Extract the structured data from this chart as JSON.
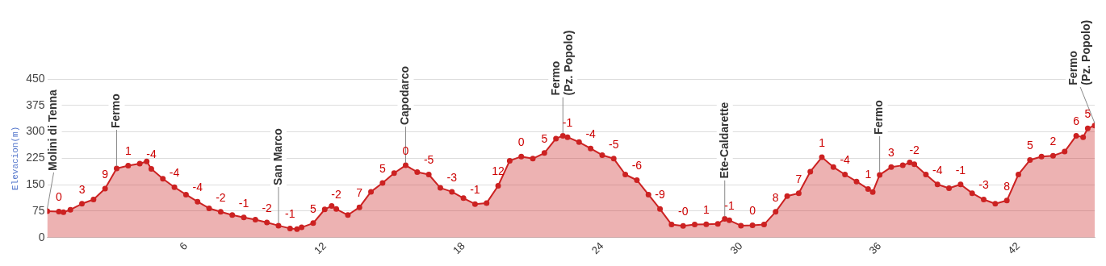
{
  "chart_data": {
    "type": "area",
    "ylabel": "Elevacion(m)",
    "xlim": [
      0,
      45.3
    ],
    "xticks": [
      6,
      12,
      18,
      24,
      30,
      36,
      42
    ],
    "ylim": [
      0,
      450
    ],
    "yticks": [
      0,
      75,
      150,
      225,
      300,
      375,
      450
    ],
    "grid": "y",
    "legend": false,
    "marker": "circle",
    "series": [
      {
        "color": "#cc2222",
        "x": [
          0,
          0.5,
          0.7,
          1,
          1.5,
          2,
          2.5,
          3,
          3.5,
          4,
          4.3,
          4.5,
          5,
          5.5,
          6,
          6.5,
          7,
          7.5,
          8,
          8.5,
          9,
          9.5,
          10,
          10.5,
          10.8,
          11,
          11.5,
          12,
          12.3,
          12.5,
          13,
          13.5,
          14,
          14.5,
          15,
          15.5,
          16,
          16.5,
          17,
          17.5,
          18,
          18.5,
          19,
          19.5,
          20,
          20.5,
          21,
          21.5,
          22,
          22.3,
          22.5,
          23,
          23.5,
          24,
          24.5,
          25,
          25.5,
          26,
          26.5,
          27,
          27.5,
          28,
          28.5,
          29,
          29.3,
          29.5,
          30,
          30.5,
          31,
          31.5,
          32,
          32.5,
          33,
          33.5,
          34,
          34.5,
          35,
          35.5,
          35.7,
          36,
          36.5,
          37,
          37.3,
          37.5,
          38,
          38.5,
          39,
          39.5,
          40,
          40.5,
          41,
          41.5,
          42,
          42.5,
          43,
          43.5,
          44,
          44.5,
          44.8,
          45,
          45.3
        ],
        "values": [
          75,
          74,
          72,
          79,
          96,
          108,
          139,
          196,
          204,
          210,
          216,
          195,
          167,
          143,
          122,
          102,
          83,
          73,
          64,
          57,
          51,
          43,
          34,
          26,
          24,
          29,
          41,
          80,
          90,
          81,
          64,
          86,
          130,
          155,
          183,
          205,
          186,
          179,
          141,
          130,
          112,
          95,
          98,
          147,
          218,
          230,
          224,
          240,
          281,
          289,
          285,
          271,
          253,
          234,
          224,
          179,
          163,
          122,
          81,
          37,
          33,
          37,
          38,
          39,
          53,
          49,
          34,
          35,
          37,
          73,
          118,
          126,
          187,
          228,
          200,
          179,
          159,
          138,
          129,
          178,
          200,
          205,
          213,
          208,
          179,
          151,
          140,
          151,
          126,
          108,
          96,
          105,
          179,
          220,
          230,
          232,
          244,
          289,
          285,
          310,
          318
        ]
      }
    ],
    "annotations": [
      {
        "text": "Molini di Tenna",
        "x": 0,
        "y": 75
      },
      {
        "text": "Fermo",
        "x": 3,
        "y": 196
      },
      {
        "text": "San Marco",
        "x": 10,
        "y": 34
      },
      {
        "text": "Capodarco",
        "x": 15.5,
        "y": 205
      },
      {
        "text": "Fermo\n(Pz. Popolo)",
        "x": 22.3,
        "y": 289
      },
      {
        "text": "Ete-Caldarette",
        "x": 29.3,
        "y": 53
      },
      {
        "text": "Fermo",
        "x": 36,
        "y": 178
      },
      {
        "text": "Fermo\n(Pz. Popolo)",
        "x": 45.3,
        "y": 318
      },
      {
        "text": "0",
        "x": 0.5,
        "y": 74
      },
      {
        "text": "3",
        "x": 1.5,
        "y": 96
      },
      {
        "text": "9",
        "x": 2.5,
        "y": 139
      },
      {
        "text": "1",
        "x": 3.5,
        "y": 204
      },
      {
        "text": "-4",
        "x": 4.5,
        "y": 195
      },
      {
        "text": "-4",
        "x": 5.5,
        "y": 143
      },
      {
        "text": "-4",
        "x": 6.5,
        "y": 102
      },
      {
        "text": "-2",
        "x": 7.5,
        "y": 73
      },
      {
        "text": "-1",
        "x": 8.5,
        "y": 57
      },
      {
        "text": "-2",
        "x": 9.5,
        "y": 43
      },
      {
        "text": "-1",
        "x": 10.5,
        "y": 26
      },
      {
        "text": "5",
        "x": 11.5,
        "y": 41
      },
      {
        "text": "-2",
        "x": 12.5,
        "y": 81
      },
      {
        "text": "7",
        "x": 13.5,
        "y": 86
      },
      {
        "text": "5",
        "x": 14.5,
        "y": 155
      },
      {
        "text": "0",
        "x": 15.5,
        "y": 205
      },
      {
        "text": "-5",
        "x": 16.5,
        "y": 179
      },
      {
        "text": "-3",
        "x": 17.5,
        "y": 130
      },
      {
        "text": "-1",
        "x": 18.5,
        "y": 95
      },
      {
        "text": "12",
        "x": 19.5,
        "y": 147
      },
      {
        "text": "0",
        "x": 20.5,
        "y": 230
      },
      {
        "text": "5",
        "x": 21.5,
        "y": 240
      },
      {
        "text": "-1",
        "x": 22.5,
        "y": 285
      },
      {
        "text": "-4",
        "x": 23.5,
        "y": 253
      },
      {
        "text": "-5",
        "x": 24.5,
        "y": 224
      },
      {
        "text": "-6",
        "x": 25.5,
        "y": 163
      },
      {
        "text": "-9",
        "x": 26.5,
        "y": 81
      },
      {
        "text": "-0",
        "x": 27.5,
        "y": 33
      },
      {
        "text": "1",
        "x": 28.5,
        "y": 38
      },
      {
        "text": "-1",
        "x": 29.5,
        "y": 49
      },
      {
        "text": "0",
        "x": 30.5,
        "y": 35
      },
      {
        "text": "8",
        "x": 31.5,
        "y": 73
      },
      {
        "text": "7",
        "x": 32.5,
        "y": 126
      },
      {
        "text": "1",
        "x": 33.5,
        "y": 228
      },
      {
        "text": "-4",
        "x": 34.5,
        "y": 179
      },
      {
        "text": "1",
        "x": 35.5,
        "y": 138
      },
      {
        "text": "3",
        "x": 36.5,
        "y": 200
      },
      {
        "text": "-2",
        "x": 37.5,
        "y": 208
      },
      {
        "text": "-4",
        "x": 38.5,
        "y": 151
      },
      {
        "text": "-1",
        "x": 39.5,
        "y": 151
      },
      {
        "text": "-3",
        "x": 40.5,
        "y": 108
      },
      {
        "text": "8",
        "x": 41.5,
        "y": 105
      },
      {
        "text": "5",
        "x": 42.5,
        "y": 220
      },
      {
        "text": "2",
        "x": 43.5,
        "y": 232
      },
      {
        "text": "6",
        "x": 44.5,
        "y": 289
      },
      {
        "text": "5",
        "x": 45,
        "y": 310
      }
    ]
  }
}
